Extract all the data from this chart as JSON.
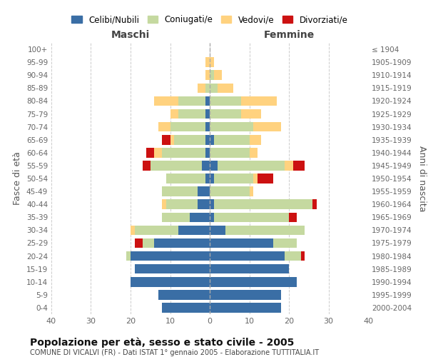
{
  "age_groups": [
    "0-4",
    "5-9",
    "10-14",
    "15-19",
    "20-24",
    "25-29",
    "30-34",
    "35-39",
    "40-44",
    "45-49",
    "50-54",
    "55-59",
    "60-64",
    "65-69",
    "70-74",
    "75-79",
    "80-84",
    "85-89",
    "90-94",
    "95-99",
    "100+"
  ],
  "birth_years": [
    "2000-2004",
    "1995-1999",
    "1990-1994",
    "1985-1989",
    "1980-1984",
    "1975-1979",
    "1970-1974",
    "1965-1969",
    "1960-1964",
    "1955-1959",
    "1950-1954",
    "1945-1949",
    "1940-1944",
    "1935-1939",
    "1930-1934",
    "1925-1929",
    "1920-1924",
    "1915-1919",
    "1910-1914",
    "1905-1909",
    "≤ 1904"
  ],
  "colors": {
    "celibe": "#3a6ea5",
    "coniugato": "#c5d9a0",
    "vedovo": "#ffd27f",
    "divorziato": "#cc1111"
  },
  "maschi": {
    "celibe": [
      12,
      13,
      20,
      19,
      20,
      14,
      8,
      5,
      3,
      3,
      1,
      2,
      1,
      1,
      1,
      1,
      1,
      0,
      0,
      0,
      0
    ],
    "coniugato": [
      0,
      0,
      0,
      0,
      1,
      3,
      11,
      7,
      8,
      9,
      10,
      13,
      11,
      8,
      9,
      7,
      7,
      1,
      0,
      0,
      0
    ],
    "vedovo": [
      0,
      0,
      0,
      0,
      0,
      0,
      1,
      0,
      1,
      0,
      0,
      0,
      2,
      1,
      3,
      2,
      6,
      2,
      1,
      1,
      0
    ],
    "divorziato": [
      0,
      0,
      0,
      0,
      0,
      2,
      0,
      0,
      0,
      0,
      0,
      2,
      2,
      2,
      0,
      0,
      0,
      0,
      0,
      0,
      0
    ]
  },
  "femmine": {
    "celibe": [
      18,
      18,
      22,
      20,
      19,
      16,
      4,
      1,
      1,
      0,
      1,
      2,
      0,
      1,
      0,
      0,
      0,
      0,
      0,
      0,
      0
    ],
    "coniugato": [
      0,
      0,
      0,
      0,
      4,
      6,
      20,
      19,
      25,
      10,
      10,
      17,
      10,
      9,
      11,
      8,
      8,
      2,
      1,
      0,
      0
    ],
    "vedovo": [
      0,
      0,
      0,
      0,
      0,
      0,
      0,
      0,
      0,
      1,
      1,
      2,
      2,
      3,
      7,
      5,
      9,
      4,
      2,
      1,
      0
    ],
    "divorziato": [
      0,
      0,
      0,
      0,
      1,
      0,
      0,
      2,
      1,
      0,
      4,
      3,
      0,
      0,
      0,
      0,
      0,
      0,
      0,
      0,
      0
    ]
  },
  "xlim": 40,
  "title": "Popolazione per età, sesso e stato civile - 2005",
  "subtitle": "COMUNE DI VICALVI (FR) - Dati ISTAT 1° gennaio 2005 - Elaborazione TUTTITALIA.IT",
  "ylabel_left": "Fasce di età",
  "ylabel_right": "Anni di nascita",
  "xlabel_maschi": "Maschi",
  "xlabel_femmine": "Femmine",
  "legend_labels": [
    "Celibi/Nubili",
    "Coniugati/e",
    "Vedovi/e",
    "Divorziati/e"
  ],
  "bg_color": "#ffffff",
  "grid_color": "#cccccc",
  "tick_color": "#666666"
}
